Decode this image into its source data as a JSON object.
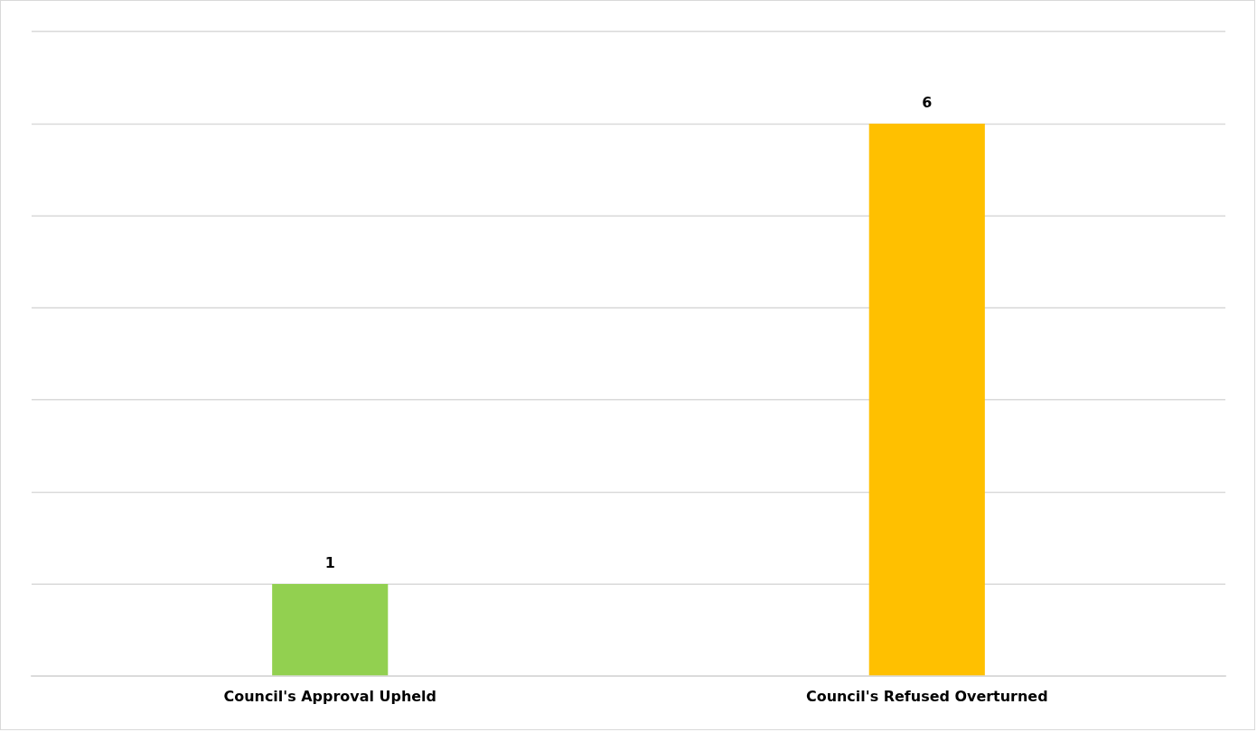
{
  "chart_data": {
    "type": "bar",
    "categories": [
      "Council's Approval Upheld",
      "Council's Refused Overturned"
    ],
    "values": [
      1,
      6
    ],
    "colors": [
      "#92d050",
      "#ffc000"
    ],
    "ylim": [
      0,
      7
    ],
    "yticks": [
      {
        "value": 0,
        "label": null
      },
      {
        "value": 1,
        "label": null
      },
      {
        "value": 2,
        "label": null
      },
      {
        "value": 3,
        "label": null
      },
      {
        "value": 4,
        "label": null
      },
      {
        "value": 5,
        "label": null
      },
      {
        "value": 6,
        "label": null
      },
      {
        "value": 7,
        "label": null
      }
    ],
    "tick_labels": "x",
    "grid": "y",
    "legend": false,
    "data_labels": true
  }
}
